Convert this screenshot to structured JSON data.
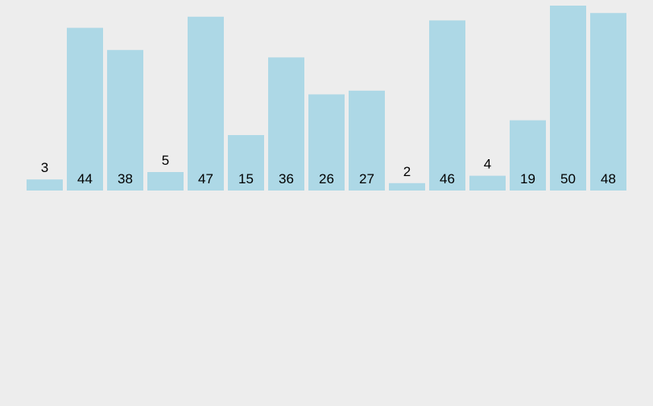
{
  "chart_data": {
    "type": "bar",
    "values": [
      3,
      44,
      38,
      5,
      47,
      15,
      36,
      26,
      27,
      2,
      46,
      4,
      19,
      50,
      48
    ],
    "ylim": [
      0,
      50
    ],
    "grid": false,
    "bar_color": "#add8e6",
    "background": "#ededed",
    "label_color": "#000000"
  }
}
